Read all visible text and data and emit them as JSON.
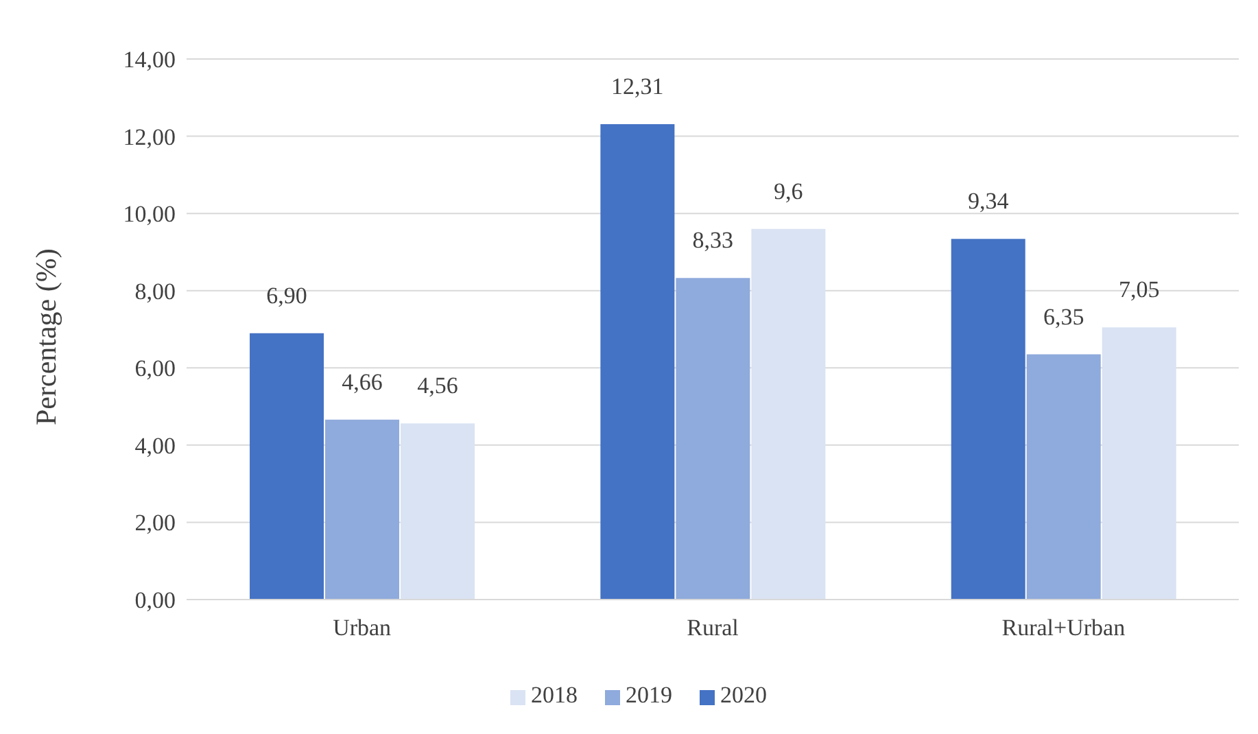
{
  "chart_data": {
    "type": "bar",
    "ylabel": "Percentage (%)",
    "categories": [
      "Urban",
      "Rural",
      "Rural+Urban"
    ],
    "series": [
      {
        "name": "2020",
        "color": "#4472c4",
        "values": [
          6.9,
          12.31,
          9.34
        ],
        "value_labels": [
          "6,90",
          "12,31",
          "9,34"
        ]
      },
      {
        "name": "2019",
        "color": "#8faadc",
        "values": [
          4.66,
          8.33,
          6.35
        ],
        "value_labels": [
          "4,66",
          "8,33",
          "6,35"
        ]
      },
      {
        "name": "2018",
        "color": "#dae3f3",
        "values": [
          4.56,
          9.6,
          7.05
        ],
        "value_labels": [
          "4,56",
          "9,6",
          "7,05"
        ]
      }
    ],
    "ylim": [
      0,
      14
    ],
    "yticks": [
      {
        "value": 0,
        "label": "0,00"
      },
      {
        "value": 2,
        "label": "2,00"
      },
      {
        "value": 4,
        "label": "4,00"
      },
      {
        "value": 6,
        "label": "6,00"
      },
      {
        "value": 8,
        "label": "8,00"
      },
      {
        "value": 10,
        "label": "10,00"
      },
      {
        "value": 12,
        "label": "12,00"
      },
      {
        "value": 14,
        "label": "14,00"
      }
    ],
    "grid": "y",
    "legend": "bottom"
  }
}
